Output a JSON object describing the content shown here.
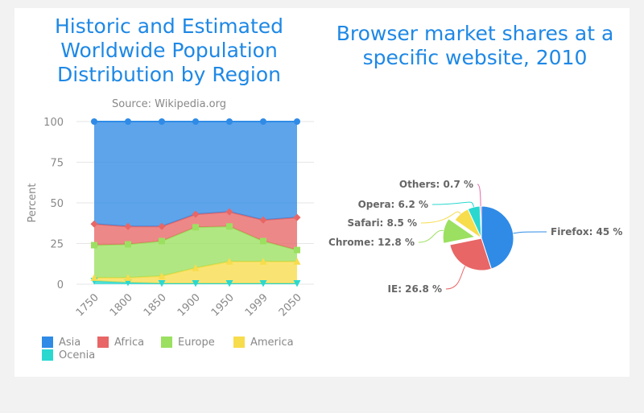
{
  "chart_data": [
    {
      "type": "area",
      "stacked": "percent",
      "title": "Historic and Estimated Worldwide Population Distribution by Region",
      "subtitle": "Source: Wikipedia.org",
      "ylabel": "Percent",
      "xlabel": "",
      "ylim": [
        0,
        100
      ],
      "yticks": [
        "0",
        "25",
        "50",
        "75",
        "100"
      ],
      "categories": [
        "1750",
        "1800",
        "1850",
        "1900",
        "1950",
        "1999",
        "2050"
      ],
      "legend_position": "bottom-left",
      "series": [
        {
          "name": "Asia",
          "color": "#2f8be6",
          "marker": "circle",
          "values": [
            63,
            64.5,
            64.5,
            57,
            55.5,
            60.5,
            59
          ]
        },
        {
          "name": "Africa",
          "color": "#e86666",
          "marker": "diamond",
          "values": [
            13,
            11,
            9,
            8,
            9,
            13,
            20
          ]
        },
        {
          "name": "Europe",
          "color": "#9be060",
          "marker": "square",
          "values": [
            20,
            20.5,
            21.5,
            25,
            21.5,
            12.5,
            7
          ]
        },
        {
          "name": "America",
          "color": "#f7dc4c",
          "marker": "triangle",
          "values": [
            2,
            3,
            4.5,
            9.5,
            13.5,
            13.5,
            13.5
          ]
        },
        {
          "name": "Ocenia",
          "color": "#2ad8d0",
          "marker": "triangle-down",
          "values": [
            2,
            1,
            0.5,
            0.5,
            0.5,
            0.5,
            0.5
          ]
        }
      ]
    },
    {
      "type": "pie",
      "title": "Browser market shares at a specific website, 2010",
      "slices": [
        {
          "name": "Firefox",
          "value": 45,
          "label": "Firefox: 45 %",
          "color": "#2f8be6",
          "sliced": false
        },
        {
          "name": "IE",
          "value": 26.8,
          "label": "IE: 26.8 %",
          "color": "#e86666",
          "sliced": false
        },
        {
          "name": "Chrome",
          "value": 12.8,
          "label": "Chrome: 12.8 %",
          "color": "#9be060",
          "sliced": true
        },
        {
          "name": "Safari",
          "value": 8.5,
          "label": "Safari: 8.5 %",
          "color": "#f7dc4c",
          "sliced": false
        },
        {
          "name": "Opera",
          "value": 6.2,
          "label": "Opera: 6.2 %",
          "color": "#2ad8d0",
          "sliced": false
        },
        {
          "name": "Others",
          "value": 0.7,
          "label": "Others: 0.7 %",
          "color": "#e46ba6",
          "sliced": false
        }
      ]
    }
  ]
}
